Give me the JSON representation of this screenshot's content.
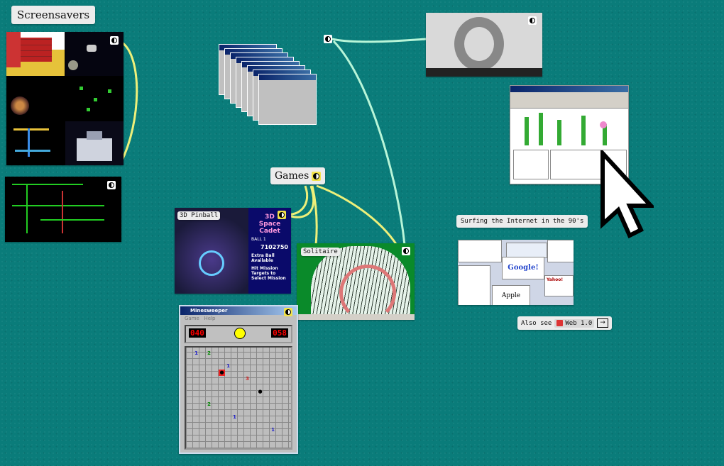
{
  "labels": {
    "screensavers": "Screensavers",
    "games": "Games",
    "pinball": "3D Pinball",
    "solitaire": "Solitaire",
    "surfing": "Surfing the Internet in the 90's",
    "also_see": "Also see",
    "web_link": "Web 1.0",
    "arrow": "→"
  },
  "pinball": {
    "title_line1": "3D",
    "title_line2": "Space",
    "title_line3": "Cadet",
    "ball_label": "BALL",
    "ball": "1",
    "score": "7102750",
    "msg1": "Extra Ball Available",
    "msg2": "Hit Mission Targets to Select Mission"
  },
  "minesweeper": {
    "title": "Minesweeper",
    "menu_game": "Game",
    "menu_help": "Help",
    "mines_left": "040",
    "timer": "058"
  },
  "web_collage": {
    "google": "Google!",
    "apple": "Apple",
    "yahoo": "Yahoo!"
  },
  "colors": {
    "background": "#0a7c7a",
    "connector_yellow": "#eef07a",
    "connector_mint": "#b8f5d8",
    "toggle_yellow": "#f2e24a"
  },
  "icons": [
    "contrast-toggle-icon",
    "web-globe-icon",
    "arrow-right-icon",
    "pointer-cursor-icon"
  ]
}
